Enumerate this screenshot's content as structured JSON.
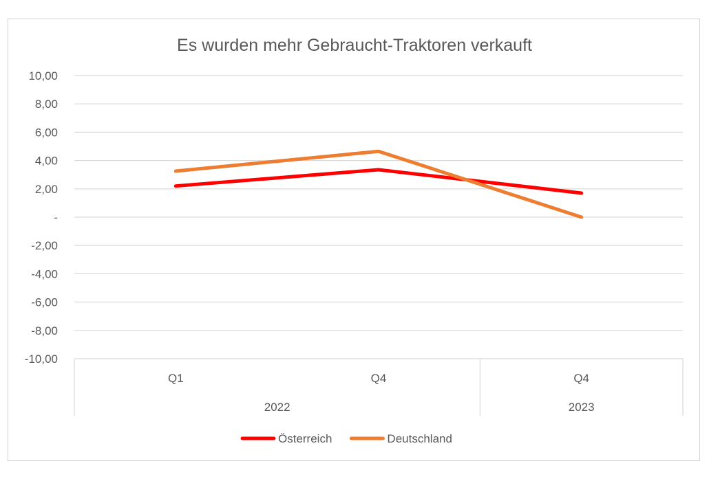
{
  "chart_data": {
    "type": "line",
    "title": "Es wurden mehr Gebraucht-Traktoren verkauft",
    "categories": [
      "Q1",
      "Q4",
      "Q4"
    ],
    "category_groups": [
      {
        "label": "2022",
        "span": 2
      },
      {
        "label": "2023",
        "span": 1
      }
    ],
    "ylim": [
      -10,
      10
    ],
    "yticks": [
      10,
      8,
      6,
      4,
      2,
      0,
      -2,
      -4,
      -6,
      -8,
      -10
    ],
    "ytick_labels": [
      "10,00",
      "8,00",
      "6,00",
      "4,00",
      "2,00",
      "-",
      "-2,00",
      "-4,00",
      "-6,00",
      "-8,00",
      "-10,00"
    ],
    "grid": true,
    "legend_position": "bottom",
    "series": [
      {
        "name": "Österreich",
        "color": "#ff0000",
        "values": [
          2.2,
          3.35,
          1.7
        ]
      },
      {
        "name": "Deutschland",
        "color": "#ed7d31",
        "values": [
          3.25,
          4.65,
          0.0
        ]
      }
    ]
  }
}
